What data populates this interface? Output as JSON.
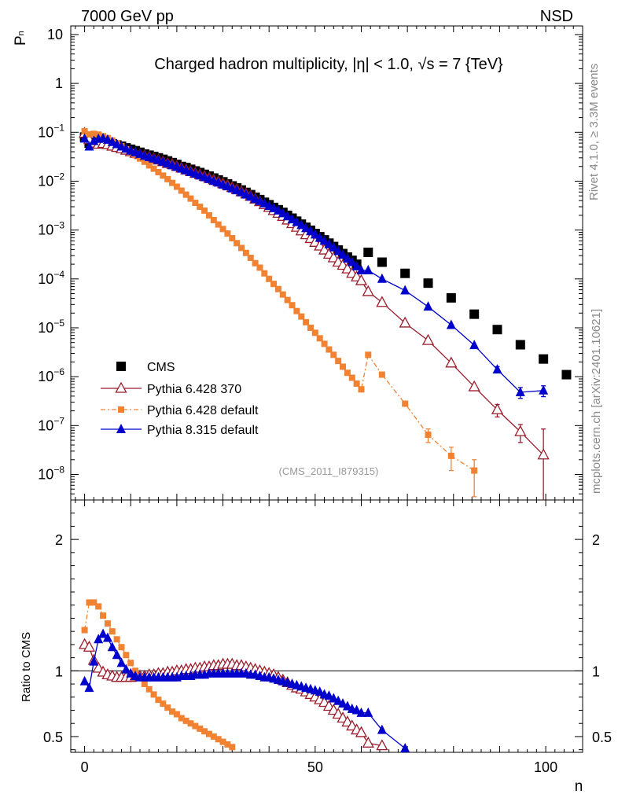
{
  "header": {
    "left": "7000 GeV pp",
    "right": "NSD",
    "title": "Charged hadron multiplicity, |η| < 1.0, √s = 7 {TeV}",
    "analysis_id": "(CMS_2011_I879315)"
  },
  "side_labels": {
    "rivet": "Rivet 4.1.0, ≥ 3.3M events",
    "mcplots": "mcplots.cern.ch [arXiv:2401.10621]"
  },
  "colors": {
    "cms": "#000000",
    "py6_370": "#9b1b2b",
    "py6_default": "#f08232",
    "py8": "#0000cc"
  },
  "chart_data": [
    {
      "type": "scatter",
      "name": "main-panel",
      "title": "Charged hadron multiplicity, |η| < 1.0, √s = 7 {TeV}",
      "xlabel": "n",
      "ylabel": "Pn",
      "ylabel_main": "P",
      "ylabel_sub": "n",
      "yscale": "log",
      "xlim": [
        -3,
        108
      ],
      "ylim": [
        3e-09,
        15
      ],
      "ytick_labels": [
        {
          "v": 10,
          "base": "10",
          "exp": ""
        },
        {
          "v": 1,
          "base": "1",
          "exp": ""
        },
        {
          "v": 0.1,
          "base": "10",
          "exp": "−1"
        },
        {
          "v": 0.01,
          "base": "10",
          "exp": "−2"
        },
        {
          "v": 0.001,
          "base": "10",
          "exp": "−3"
        },
        {
          "v": 0.0001,
          "base": "10",
          "exp": "−4"
        },
        {
          "v": 1e-05,
          "base": "10",
          "exp": "−5"
        },
        {
          "v": 1e-06,
          "base": "10",
          "exp": "−6"
        },
        {
          "v": 1e-07,
          "base": "10",
          "exp": "−7"
        },
        {
          "v": 1e-08,
          "base": "10",
          "exp": "−8"
        }
      ],
      "legend": [
        {
          "label": "CMS",
          "key": "cms"
        },
        {
          "label": "Pythia 6.428 370",
          "key": "py6_370"
        },
        {
          "label": "Pythia 6.428 default",
          "key": "py6_default"
        },
        {
          "label": "Pythia 8.315 default",
          "key": "py8"
        }
      ],
      "legend_position": "lower-left",
      "series": [
        {
          "key": "cms",
          "name": "CMS",
          "marker": "square-filled",
          "x": [
            0,
            1,
            2,
            3,
            4,
            5,
            6,
            7,
            8,
            9,
            10,
            11,
            12,
            13,
            14,
            15,
            16,
            17,
            18,
            19,
            20,
            21,
            22,
            23,
            24,
            25,
            26,
            27,
            28,
            29,
            30,
            31,
            32,
            33,
            34,
            35,
            36,
            37,
            38,
            39,
            40,
            41,
            42,
            43,
            44,
            45,
            46,
            47,
            48,
            49,
            50,
            51,
            52,
            53,
            54,
            55,
            56,
            57,
            58,
            59,
            61.5,
            64.5,
            69.5,
            74.5,
            79.5,
            84.5,
            89.5,
            94.5,
            99.5,
            104.5
          ],
          "y": [
            0.08,
            0.06,
            0.062,
            0.065,
            0.064,
            0.062,
            0.058,
            0.055,
            0.052,
            0.048,
            0.045,
            0.042,
            0.039,
            0.036,
            0.034,
            0.032,
            0.03,
            0.028,
            0.026,
            0.024,
            0.022,
            0.02,
            0.019,
            0.0175,
            0.0162,
            0.015,
            0.0138,
            0.0127,
            0.0116,
            0.0106,
            0.0097,
            0.0088,
            0.008,
            0.0073,
            0.0066,
            0.0059,
            0.0053,
            0.0047,
            0.0042,
            0.0037,
            0.0033,
            0.0029,
            0.0026,
            0.0023,
            0.002,
            0.00175,
            0.00152,
            0.00132,
            0.00114,
            0.00099,
            0.00085,
            0.00073,
            0.00063,
            0.00054,
            0.00046,
            0.00039,
            0.00033,
            0.00028,
            0.00024,
            0.0002,
            0.00035,
            0.00022,
            0.00013,
            8.2e-05,
            4.1e-05,
            1.9e-05,
            9.2e-06,
            4.5e-06,
            2.3e-06,
            1.1e-06
          ]
        },
        {
          "key": "py6_370",
          "name": "Pythia 6.428 370",
          "marker": "triangle-open",
          "x": [
            0,
            1,
            2,
            3,
            4,
            5,
            6,
            7,
            8,
            9,
            10,
            11,
            12,
            13,
            14,
            15,
            16,
            17,
            18,
            19,
            20,
            21,
            22,
            23,
            24,
            25,
            26,
            27,
            28,
            29,
            30,
            31,
            32,
            33,
            34,
            35,
            36,
            37,
            38,
            39,
            40,
            41,
            42,
            43,
            44,
            45,
            46,
            47,
            48,
            49,
            50,
            51,
            52,
            53,
            54,
            55,
            56,
            57,
            58,
            59,
            60,
            61.5,
            64.5,
            69.5,
            74.5,
            79.5,
            84.5,
            89.5,
            94.5,
            99.5
          ],
          "y": [
            0.095,
            0.071,
            0.06,
            0.057,
            0.059,
            0.056,
            0.052,
            0.049,
            0.046,
            0.043,
            0.04,
            0.037,
            0.035,
            0.033,
            0.031,
            0.029,
            0.027,
            0.025,
            0.023,
            0.022,
            0.02,
            0.0185,
            0.017,
            0.0157,
            0.0145,
            0.0135,
            0.0125,
            0.0115,
            0.0106,
            0.0097,
            0.0089,
            0.0082,
            0.0074,
            0.0067,
            0.0061,
            0.0055,
            0.0049,
            0.0043,
            0.0038,
            0.0033,
            0.0029,
            0.0025,
            0.0022,
            0.0019,
            0.0016,
            0.00135,
            0.00114,
            0.00096,
            0.0008,
            0.00067,
            0.00056,
            0.00047,
            0.00039,
            0.00032,
            0.00027,
            0.00022,
            0.00019,
            0.00016,
            0.00013,
            0.00011,
            9.2e-05,
            5.5e-05,
            3.3e-05,
            1.25e-05,
            5.5e-06,
            1.9e-06,
            6.2e-07,
            2.1e-07,
            7.5e-08,
            2.5e-08
          ],
          "err_lo": {
            "89.5": 6e-08,
            "94.5": 3e-08,
            "99.5": 2.35e-08
          },
          "err_hi": {
            "89.5": 6e-08,
            "94.5": 3e-08,
            "99.5": 6e-08
          }
        },
        {
          "key": "py6_default",
          "name": "Pythia 6.428 default",
          "marker": "square-small",
          "x": [
            0,
            1,
            2,
            3,
            4,
            5,
            6,
            7,
            8,
            9,
            10,
            11,
            12,
            13,
            14,
            15,
            16,
            17,
            18,
            19,
            20,
            21,
            22,
            23,
            24,
            25,
            26,
            27,
            28,
            29,
            30,
            31,
            32,
            33,
            34,
            35,
            36,
            37,
            38,
            39,
            40,
            41,
            42,
            43,
            44,
            45,
            46,
            47,
            48,
            49,
            50,
            51,
            52,
            53,
            54,
            55,
            56,
            57,
            58,
            59,
            60,
            61.5,
            64.5,
            69.5,
            74.5,
            79.5,
            84.5
          ],
          "y": [
            0.105,
            0.091,
            0.093,
            0.09,
            0.083,
            0.076,
            0.068,
            0.06,
            0.052,
            0.045,
            0.039,
            0.034,
            0.029,
            0.025,
            0.021,
            0.018,
            0.0153,
            0.013,
            0.011,
            0.0092,
            0.0077,
            0.0064,
            0.0053,
            0.0044,
            0.0036,
            0.003,
            0.0025,
            0.002,
            0.0016,
            0.0013,
            0.00105,
            0.00085,
            0.00068,
            0.00054,
            0.00043,
            0.00034,
            0.00027,
            0.00021,
            0.00017,
            0.00013,
            0.0001,
            7.9e-05,
            6.2e-05,
            4.8e-05,
            3.7e-05,
            2.9e-05,
            2.2e-05,
            1.7e-05,
            1.3e-05,
            1e-05,
            7.9e-06,
            6.1e-06,
            4.7e-06,
            3.6e-06,
            2.8e-06,
            2.1e-06,
            1.6e-06,
            1.2e-06,
            9.5e-07,
            7.2e-07,
            5.5e-07,
            2.8e-06,
            1.1e-06,
            2.8e-07,
            6.5e-08,
            2.4e-08,
            1.2e-08
          ],
          "err_lo": {
            "74.5": 2e-08,
            "79.5": 1.2e-08,
            "84.5": 8.5e-09
          },
          "err_hi": {
            "74.5": 2e-08,
            "79.5": 1.2e-08,
            "84.5": 8e-09
          }
        },
        {
          "key": "py8",
          "name": "Pythia 8.315 default",
          "marker": "triangle-filled",
          "x": [
            0,
            1,
            2,
            3,
            4,
            5,
            6,
            7,
            8,
            9,
            10,
            11,
            12,
            13,
            14,
            15,
            16,
            17,
            18,
            19,
            20,
            21,
            22,
            23,
            24,
            25,
            26,
            27,
            28,
            29,
            30,
            31,
            32,
            33,
            34,
            35,
            36,
            37,
            38,
            39,
            40,
            41,
            42,
            43,
            44,
            45,
            46,
            47,
            48,
            49,
            50,
            51,
            52,
            53,
            54,
            55,
            56,
            57,
            58,
            59,
            60,
            61.5,
            64.5,
            69.5,
            74.5,
            79.5,
            84.5,
            89.5,
            94.5,
            99.5
          ],
          "y": [
            0.074,
            0.051,
            0.066,
            0.073,
            0.075,
            0.07,
            0.063,
            0.057,
            0.051,
            0.046,
            0.042,
            0.039,
            0.036,
            0.033,
            0.031,
            0.029,
            0.027,
            0.025,
            0.023,
            0.021,
            0.0195,
            0.018,
            0.0166,
            0.0153,
            0.0141,
            0.013,
            0.012,
            0.011,
            0.0101,
            0.0093,
            0.0085,
            0.0078,
            0.0071,
            0.0065,
            0.0059,
            0.0053,
            0.0048,
            0.0043,
            0.0039,
            0.0035,
            0.0031,
            0.0028,
            0.0025,
            0.0022,
            0.0019,
            0.00165,
            0.00145,
            0.00126,
            0.00109,
            0.00094,
            0.00081,
            0.00069,
            0.0006,
            0.00051,
            0.00044,
            0.00037,
            0.00031,
            0.00026,
            0.00022,
            0.00018,
            0.00015,
            0.00015,
            0.0001,
            5.8e-05,
            2.7e-05,
            1.14e-05,
            4.4e-06,
            1.4e-06,
            4.8e-07,
            5.2e-07
          ],
          "err_lo": {
            "89.5": 2e-07,
            "94.5": 1.2e-07,
            "99.5": 1.3e-07
          },
          "err_hi": {
            "89.5": 2e-07,
            "94.5": 1.2e-07,
            "99.5": 1.3e-07
          }
        }
      ]
    },
    {
      "type": "scatter",
      "name": "ratio-panel",
      "xlabel": "n",
      "ylabel": "Ratio to CMS",
      "xlim": [
        -3,
        108
      ],
      "ylim": [
        0.38,
        2.3
      ],
      "xtick_labels": [
        0,
        50,
        100
      ],
      "ytick_labels": [
        0.5,
        1,
        2
      ],
      "reference_line": 1,
      "series": [
        {
          "key": "py6_370",
          "marker": "triangle-open",
          "x": [
            0,
            1,
            2,
            3,
            4,
            5,
            6,
            7,
            8,
            9,
            10,
            11,
            12,
            13,
            14,
            15,
            16,
            17,
            18,
            19,
            20,
            21,
            22,
            23,
            24,
            25,
            26,
            27,
            28,
            29,
            30,
            31,
            32,
            33,
            34,
            35,
            36,
            37,
            38,
            39,
            40,
            41,
            42,
            43,
            44,
            45,
            46,
            47,
            48,
            49,
            50,
            51,
            52,
            53,
            54,
            55,
            56,
            57,
            58,
            59,
            60,
            61.5,
            64.5
          ],
          "y": [
            1.2,
            1.18,
            1.08,
            1.02,
            0.99,
            0.97,
            0.96,
            0.95,
            0.95,
            0.95,
            0.95,
            0.96,
            0.96,
            0.96,
            0.97,
            0.97,
            0.98,
            0.98,
            0.99,
            0.99,
            1.0,
            1.0,
            1.01,
            1.01,
            1.02,
            1.02,
            1.03,
            1.03,
            1.04,
            1.04,
            1.05,
            1.05,
            1.05,
            1.04,
            1.04,
            1.03,
            1.02,
            1.01,
            1.0,
            0.99,
            0.98,
            0.97,
            0.95,
            0.93,
            0.91,
            0.89,
            0.87,
            0.86,
            0.84,
            0.82,
            0.8,
            0.78,
            0.76,
            0.73,
            0.7,
            0.67,
            0.64,
            0.61,
            0.58,
            0.55,
            0.53,
            0.45,
            0.43
          ]
        },
        {
          "key": "py6_default",
          "marker": "square-small",
          "x": [
            0,
            1,
            2,
            3,
            4,
            5,
            6,
            7,
            8,
            9,
            10,
            11,
            12,
            13,
            14,
            15,
            16,
            17,
            18,
            19,
            20,
            21,
            22,
            23,
            24,
            25,
            26,
            27,
            28,
            29,
            30,
            31,
            32
          ],
          "y": [
            1.31,
            1.52,
            1.52,
            1.49,
            1.42,
            1.36,
            1.3,
            1.24,
            1.18,
            1.12,
            1.06,
            1.0,
            0.95,
            0.9,
            0.86,
            0.82,
            0.78,
            0.75,
            0.72,
            0.69,
            0.67,
            0.64,
            0.62,
            0.6,
            0.58,
            0.56,
            0.54,
            0.52,
            0.5,
            0.48,
            0.46,
            0.44,
            0.42
          ]
        },
        {
          "key": "py8",
          "marker": "triangle-filled",
          "x": [
            0,
            1,
            2,
            3,
            4,
            5,
            6,
            7,
            8,
            9,
            10,
            11,
            12,
            13,
            14,
            15,
            16,
            17,
            18,
            19,
            20,
            21,
            22,
            23,
            24,
            25,
            26,
            27,
            28,
            29,
            30,
            31,
            32,
            33,
            34,
            35,
            36,
            37,
            38,
            39,
            40,
            41,
            42,
            43,
            44,
            45,
            46,
            47,
            48,
            49,
            50,
            51,
            52,
            53,
            54,
            55,
            56,
            57,
            58,
            59,
            60,
            61.5,
            64.5,
            69.5
          ],
          "y": [
            0.92,
            0.87,
            1.07,
            1.24,
            1.28,
            1.25,
            1.18,
            1.12,
            1.06,
            1.01,
            0.98,
            0.96,
            0.95,
            0.95,
            0.95,
            0.95,
            0.95,
            0.95,
            0.95,
            0.95,
            0.95,
            0.96,
            0.96,
            0.96,
            0.97,
            0.97,
            0.97,
            0.98,
            0.98,
            0.98,
            0.98,
            0.98,
            0.98,
            0.98,
            0.98,
            0.98,
            0.97,
            0.97,
            0.96,
            0.95,
            0.95,
            0.94,
            0.93,
            0.92,
            0.91,
            0.9,
            0.89,
            0.88,
            0.87,
            0.86,
            0.85,
            0.84,
            0.82,
            0.81,
            0.79,
            0.77,
            0.75,
            0.73,
            0.71,
            0.7,
            0.68,
            0.68,
            0.55,
            0.41
          ]
        }
      ]
    }
  ]
}
